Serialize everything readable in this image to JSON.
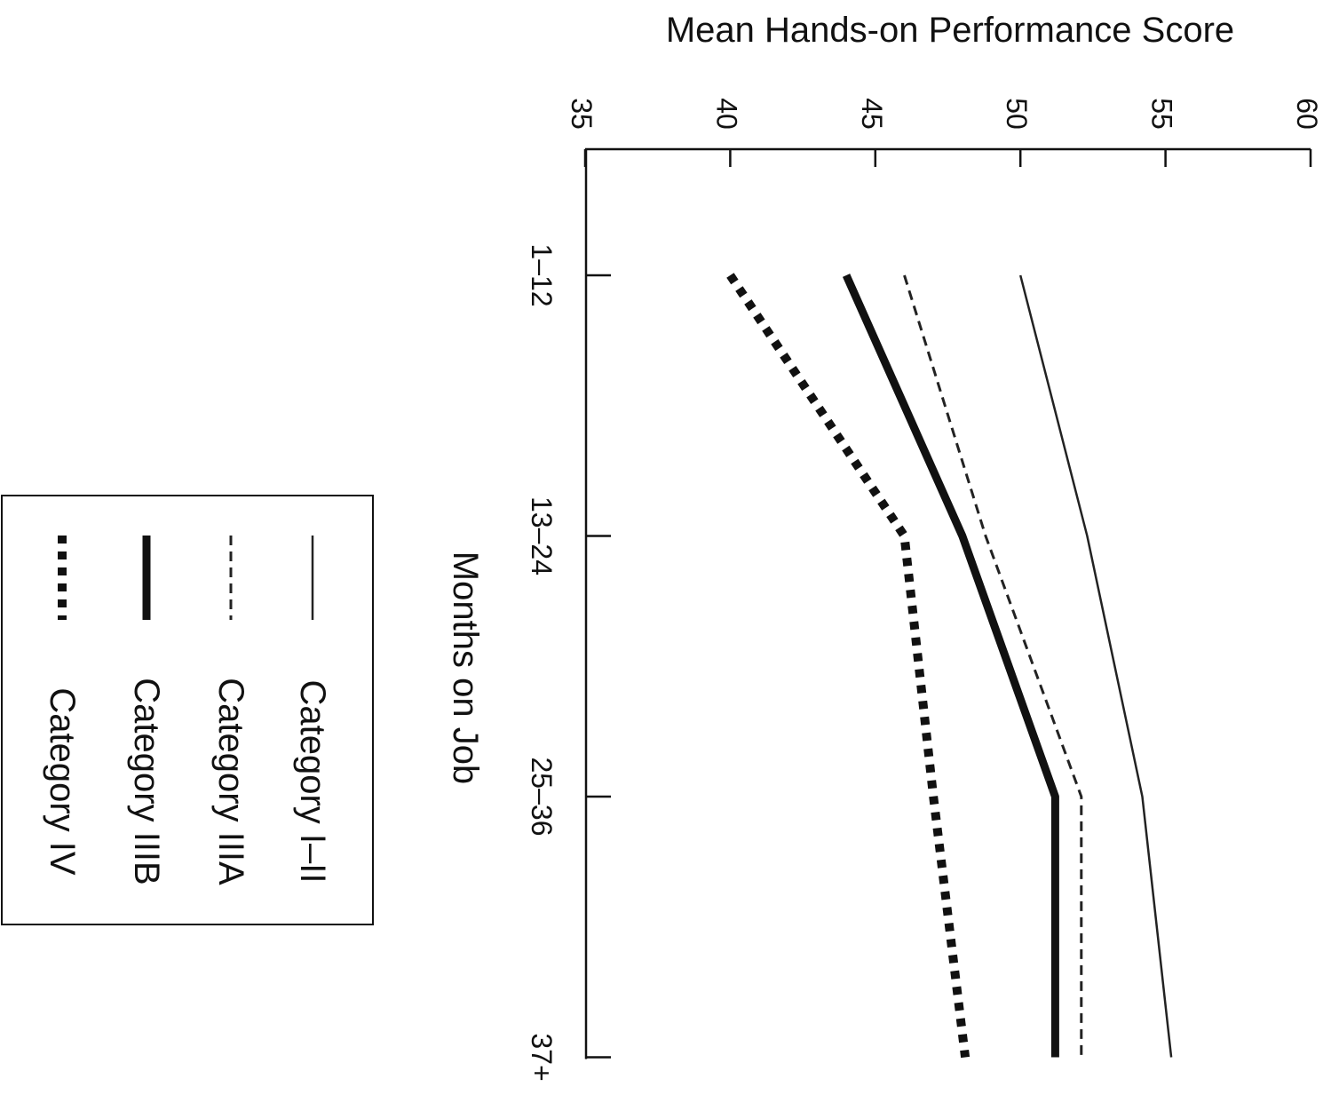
{
  "chart_data": {
    "type": "line",
    "xlabel": "Months on Job",
    "ylabel": "Mean Hands-on Performance Score",
    "categories": [
      "1–12",
      "13–24",
      "25–36",
      "37+"
    ],
    "ylim": [
      35,
      60
    ],
    "yticks": [
      35,
      40,
      45,
      50,
      55,
      60
    ],
    "orientation": "rotated 90° clockwise",
    "grid": false,
    "legend_position": "left",
    "series": [
      {
        "name": "Category I–II",
        "values": [
          50.0,
          52.3,
          54.2,
          55.2
        ],
        "style": "thin-solid",
        "color": "#222222"
      },
      {
        "name": "Category IIIA",
        "values": [
          46.0,
          48.8,
          52.1,
          52.1
        ],
        "style": "thin-dashed",
        "color": "#222222"
      },
      {
        "name": "Category IIIB",
        "values": [
          44.0,
          48.0,
          51.2,
          51.2
        ],
        "style": "thick-solid",
        "color": "#111111"
      },
      {
        "name": "Category IV",
        "values": [
          40.0,
          46.0,
          47.0,
          48.1
        ],
        "style": "thick-dotted",
        "color": "#111111"
      }
    ]
  }
}
